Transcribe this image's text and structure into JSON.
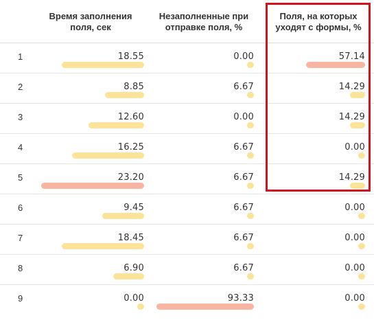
{
  "columns": {
    "time": {
      "line1": "Время заполнения",
      "line2": "поля, сек"
    },
    "empty": {
      "line1": "Незаполненные при",
      "line2": "отправке поля, %"
    },
    "leave": {
      "line1": "Поля, на которых",
      "line2": "уходят с формы, %"
    }
  },
  "colors": {
    "bar_normal": "#fbe39a",
    "bar_high": "#f8b6a2",
    "highlight_frame": "#d4121b"
  },
  "rows": [
    {
      "num": "1",
      "time": "18.55",
      "empty": "0.00",
      "leave": "57.14",
      "time_frac": 0.8,
      "empty_frac": 0.0,
      "leave_frac": 1.0,
      "time_high": false,
      "empty_high": false,
      "leave_high": true
    },
    {
      "num": "2",
      "time": "8.85",
      "empty": "6.67",
      "leave": "14.29",
      "time_frac": 0.38,
      "empty_frac": 0.07,
      "leave_frac": 0.25,
      "time_high": false,
      "empty_high": false,
      "leave_high": false
    },
    {
      "num": "3",
      "time": "12.60",
      "empty": "0.00",
      "leave": "14.29",
      "time_frac": 0.54,
      "empty_frac": 0.0,
      "leave_frac": 0.25,
      "time_high": false,
      "empty_high": false,
      "leave_high": false
    },
    {
      "num": "4",
      "time": "16.25",
      "empty": "6.67",
      "leave": "0.00",
      "time_frac": 0.7,
      "empty_frac": 0.07,
      "leave_frac": 0.0,
      "time_high": false,
      "empty_high": false,
      "leave_high": false
    },
    {
      "num": "5",
      "time": "23.20",
      "empty": "6.67",
      "leave": "14.29",
      "time_frac": 1.0,
      "empty_frac": 0.07,
      "leave_frac": 0.25,
      "time_high": true,
      "empty_high": false,
      "leave_high": false
    },
    {
      "num": "6",
      "time": "9.45",
      "empty": "6.67",
      "leave": "0.00",
      "time_frac": 0.41,
      "empty_frac": 0.07,
      "leave_frac": 0.0,
      "time_high": false,
      "empty_high": false,
      "leave_high": false
    },
    {
      "num": "7",
      "time": "18.45",
      "empty": "6.67",
      "leave": "0.00",
      "time_frac": 0.8,
      "empty_frac": 0.07,
      "leave_frac": 0.0,
      "time_high": false,
      "empty_high": false,
      "leave_high": false
    },
    {
      "num": "8",
      "time": "6.90",
      "empty": "6.67",
      "leave": "0.00",
      "time_frac": 0.3,
      "empty_frac": 0.07,
      "leave_frac": 0.0,
      "time_high": false,
      "empty_high": false,
      "leave_high": false
    },
    {
      "num": "9",
      "time": "0.00",
      "empty": "93.33",
      "leave": "0.00",
      "time_frac": 0.0,
      "empty_frac": 1.0,
      "leave_frac": 0.0,
      "time_high": false,
      "empty_high": true,
      "leave_high": false
    }
  ]
}
